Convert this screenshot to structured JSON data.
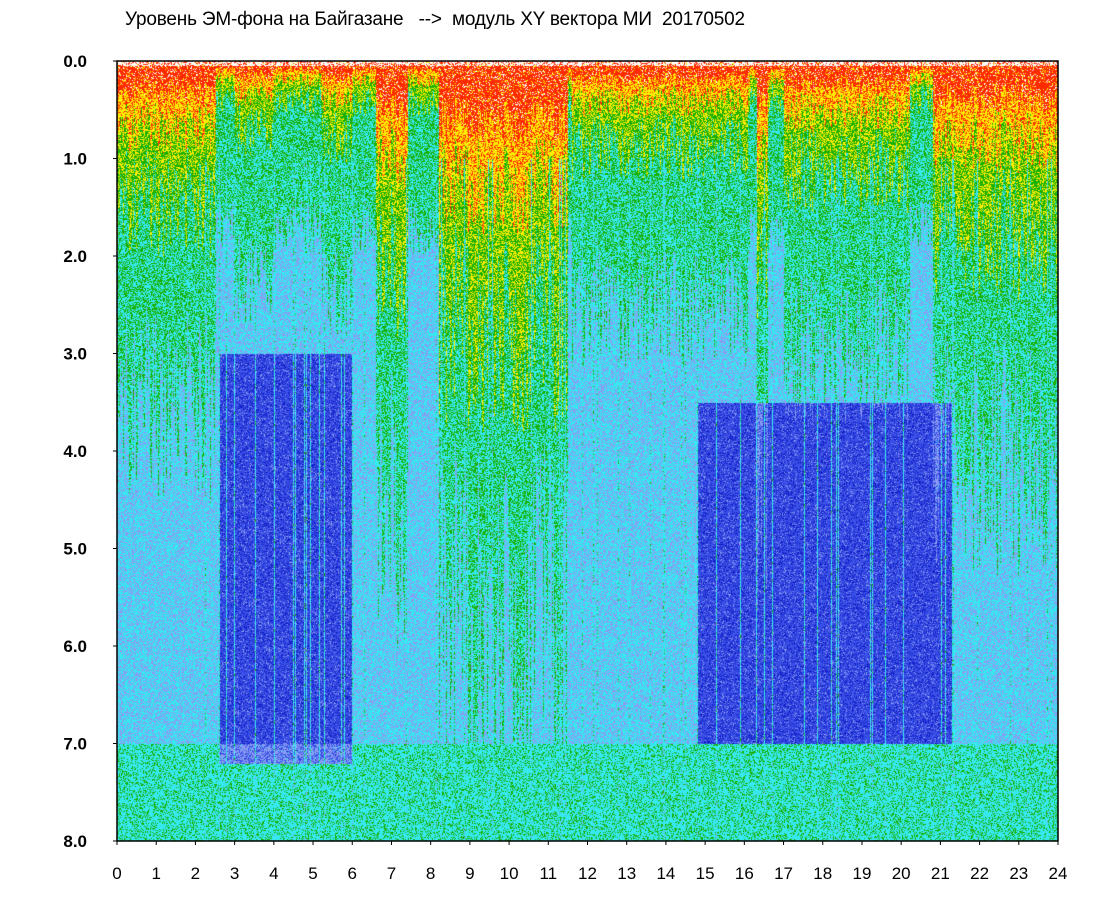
{
  "chart_data": {
    "type": "heatmap",
    "title": "Уровень ЭМ-фона на Байгазане   -->  модуль XY вектора МИ  20170502",
    "xlabel": "",
    "ylabel": "",
    "xlim": [
      0,
      24
    ],
    "ylim": [
      8.0,
      0.0
    ],
    "y_axis_inverted": true,
    "x_ticks": [
      "0",
      "1",
      "2",
      "3",
      "4",
      "5",
      "6",
      "7",
      "8",
      "9",
      "10",
      "11",
      "12",
      "13",
      "14",
      "15",
      "16",
      "17",
      "18",
      "19",
      "20",
      "21",
      "22",
      "23",
      "24"
    ],
    "y_ticks": [
      "0.0",
      "1.0",
      "2.0",
      "3.0",
      "4.0",
      "5.0",
      "6.0",
      "7.0",
      "8.0"
    ],
    "colormap": [
      "#ffffff",
      "#ff2a00",
      "#ffee00",
      "#19b000",
      "#36e8f0",
      "#8a9cf2",
      "#3a50e6",
      "#1420c8"
    ],
    "description_of_field": "Daily spectrogram of magnetic field XY module; high intensity (red/yellow) concentrated near 0.0–1.0, grading to cyan then blue toward 8.0; darkest blue patches around hours 3–6 and 16.5–21 at levels 4–7",
    "intense_hours": [
      {
        "start": 0.0,
        "end": 2.5,
        "depth": 0.9
      },
      {
        "start": 3.0,
        "end": 4.0,
        "depth": 0.45
      },
      {
        "start": 5.2,
        "end": 6.0,
        "depth": 0.5
      },
      {
        "start": 6.6,
        "end": 7.4,
        "depth": 1.3
      },
      {
        "start": 8.2,
        "end": 11.5,
        "depth": 1.7
      },
      {
        "start": 11.6,
        "end": 16.1,
        "depth": 0.55
      },
      {
        "start": 16.3,
        "end": 16.6,
        "depth": 1.2
      },
      {
        "start": 17.0,
        "end": 20.2,
        "depth": 0.7
      },
      {
        "start": 20.8,
        "end": 24.0,
        "depth": 1.1
      }
    ],
    "dark_regions": [
      {
        "x0": 2.6,
        "x1": 6.0,
        "y0": 3.0,
        "y1": 7.2
      },
      {
        "x0": 14.8,
        "x1": 21.3,
        "y0": 3.5,
        "y1": 7.0
      }
    ]
  }
}
